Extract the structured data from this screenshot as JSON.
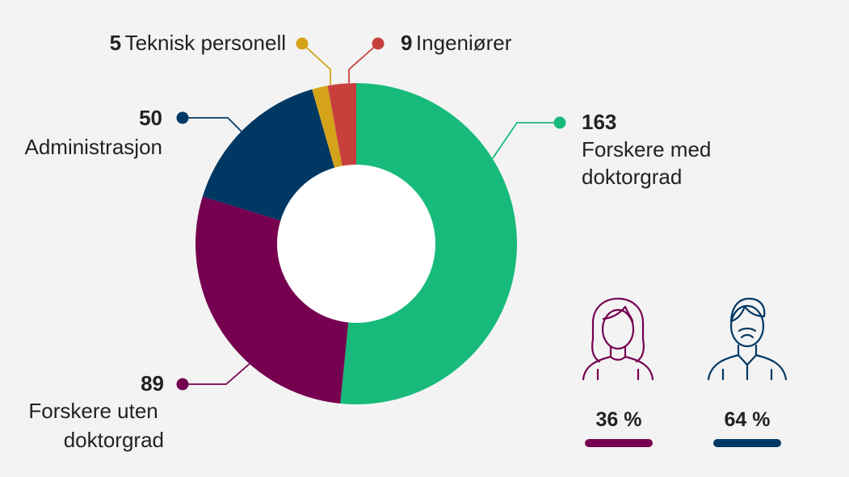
{
  "chart_data": {
    "type": "pie",
    "series": [
      {
        "values": [
          163,
          89,
          50,
          5,
          9
        ],
        "labels": [
          "Forskere med doktorgrad",
          "Forskere uten doktorgrad",
          "Administrasjon",
          "Teknisk personell",
          "Ingeniører"
        ],
        "colors": [
          "#17ba7b",
          "#750050",
          "#003864",
          "#d4a319",
          "#c8403c"
        ]
      }
    ],
    "legend": "none"
  },
  "gender": {
    "female": {
      "value": "36 %",
      "color": "#750050",
      "icon": "female-person-icon"
    },
    "male": {
      "value": "64 %",
      "color": "#003864",
      "icon": "male-person-icon"
    }
  }
}
